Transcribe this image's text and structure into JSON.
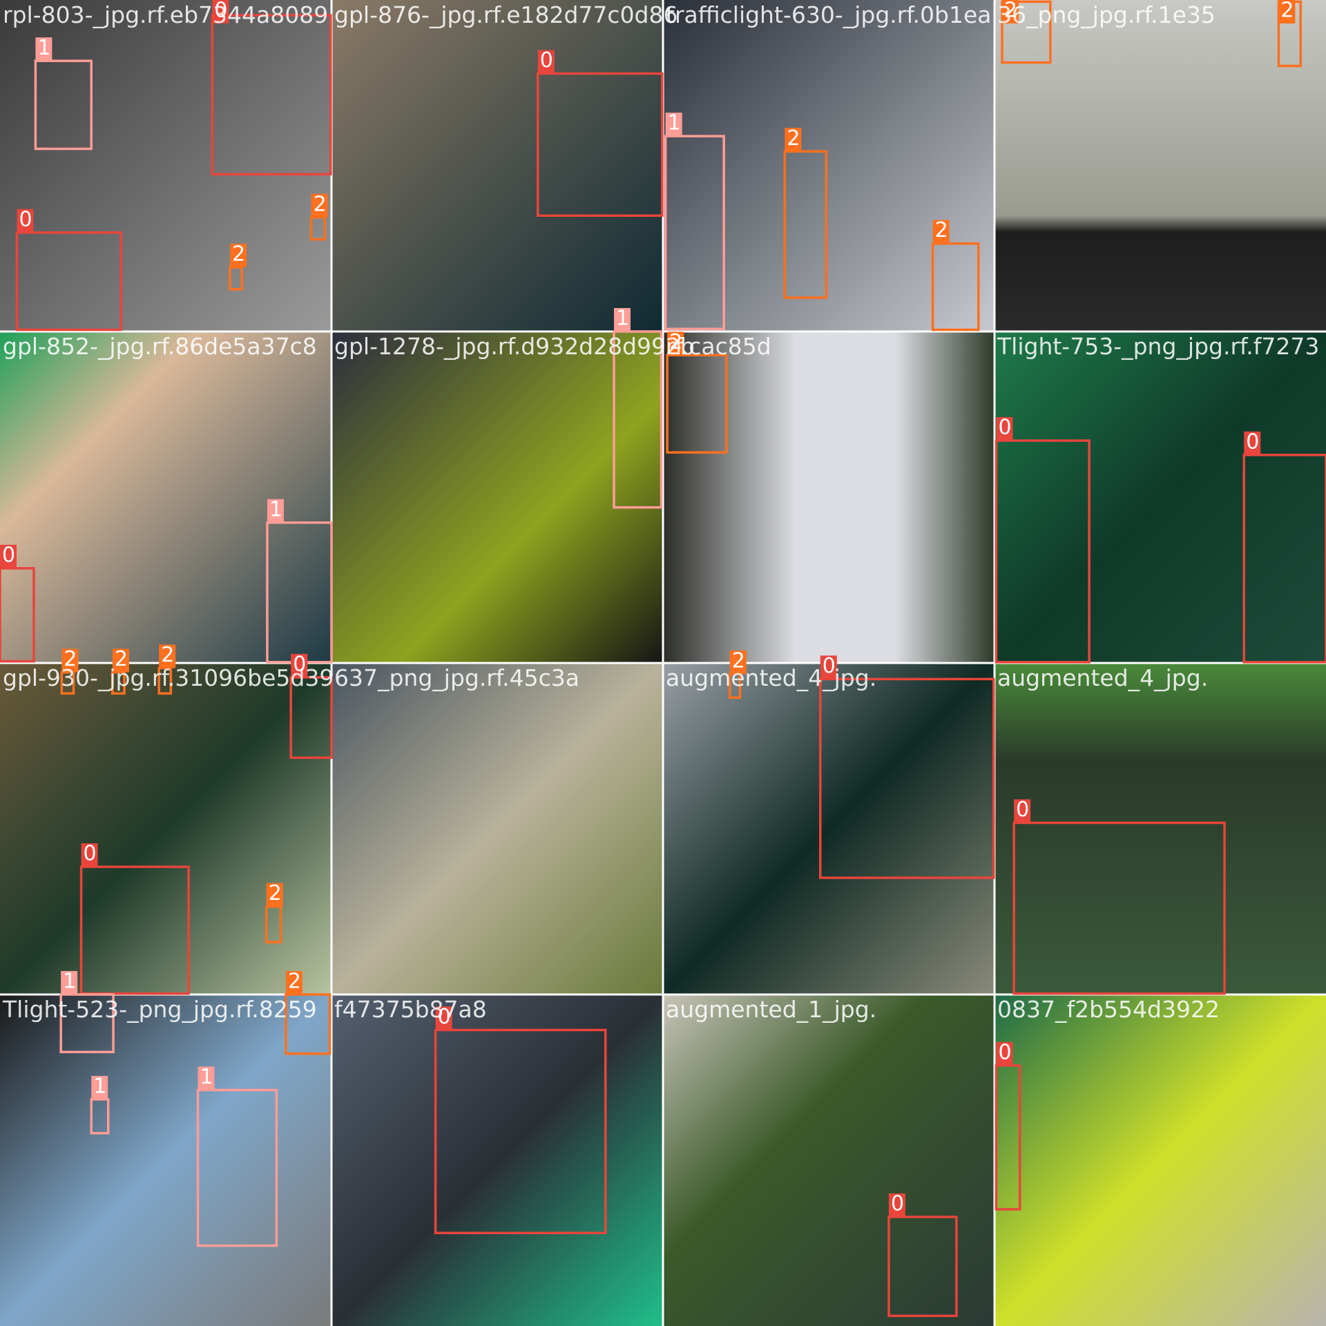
{
  "tiles": [
    {
      "title": "rpl-803-_jpg.rf.eb7344a8089",
      "boxes": [
        "1",
        "0",
        "2",
        "2",
        "0"
      ]
    },
    {
      "title": "gpl-876-_jpg.rf.e182d77c0d86",
      "boxes": [
        "0"
      ]
    },
    {
      "title": "trafficlight-630-_jpg.rf.0b1ea",
      "boxes": [
        "1",
        "2",
        "2"
      ]
    },
    {
      "title": "36_png_jpg.rf.1e35",
      "boxes": [
        "2",
        "2"
      ]
    },
    {
      "title": "gpl-852-_jpg.rf.86de5a37c8",
      "boxes": [
        "0",
        "1",
        "2",
        "2",
        "2"
      ]
    },
    {
      "title": "gpl-1278-_jpg.rf.d932d28d992b",
      "boxes": [
        "1"
      ]
    },
    {
      "title": "rf.cac85d",
      "boxes": [
        "2"
      ]
    },
    {
      "title": "Tlight-753-_png_jpg.rf.f7273",
      "boxes": [
        "0",
        "0"
      ]
    },
    {
      "title": "gpl-930-_jpg.rf.31096be5d39",
      "boxes": [
        "0",
        "0",
        "2",
        "2"
      ]
    },
    {
      "title": "637_png_jpg.rf.45c3a",
      "boxes": []
    },
    {
      "title": "augmented_4_jpg.",
      "boxes": [
        "2",
        "0"
      ]
    },
    {
      "title": "augmented_4_jpg.",
      "boxes": [
        "0"
      ]
    },
    {
      "title": "Tlight-523-_png_jpg.rf.8259",
      "boxes": [
        "1",
        "1",
        "1"
      ]
    },
    {
      "title": "f47375b87a8",
      "boxes": [
        "0"
      ]
    },
    {
      "title": "augmented_1_jpg.",
      "boxes": [
        "0"
      ]
    },
    {
      "title": "0837_f2b554d3922",
      "boxes": [
        "0"
      ]
    }
  ]
}
